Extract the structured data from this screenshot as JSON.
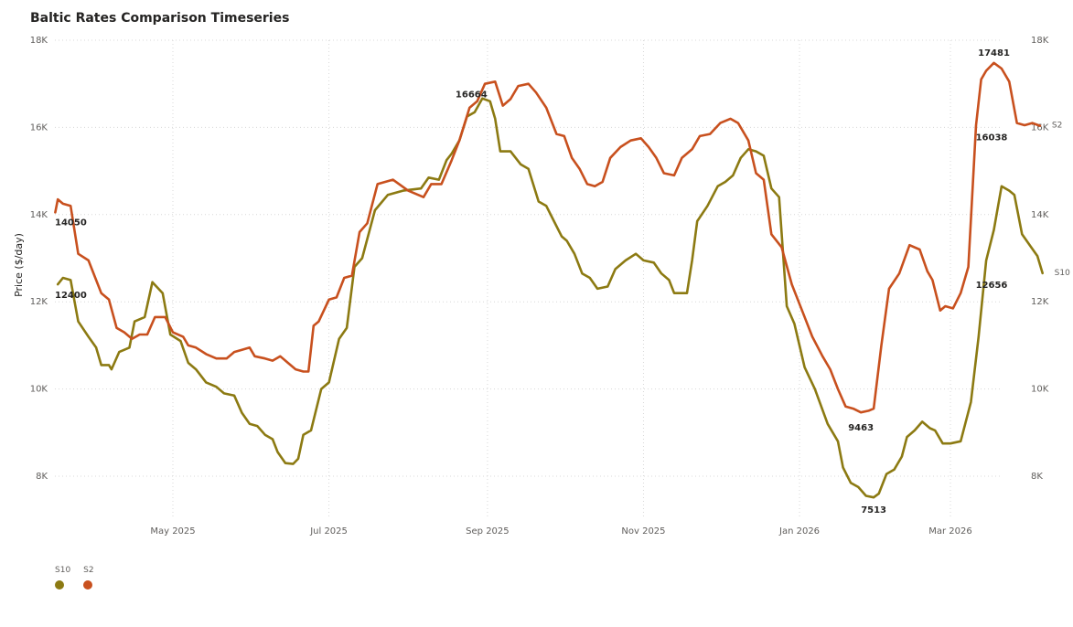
{
  "chart_data": {
    "type": "line",
    "title": "Baltic Rates Comparison Timeseries",
    "ylabel": "Price ($/day)",
    "xlabel": "",
    "ylim": [
      7000,
      18000
    ],
    "xlim": [
      "2025-03-15",
      "2026-03-22"
    ],
    "y_ticks": [
      {
        "value": 8000,
        "label": "8K"
      },
      {
        "value": 10000,
        "label": "10K"
      },
      {
        "value": 12000,
        "label": "12K"
      },
      {
        "value": 14000,
        "label": "14K"
      },
      {
        "value": 16000,
        "label": "16K"
      },
      {
        "value": 18000,
        "label": "18K"
      }
    ],
    "x_ticks": [
      {
        "date": "2025-05-01",
        "label": "May 2025"
      },
      {
        "date": "2025-07-01",
        "label": "Jul 2025"
      },
      {
        "date": "2025-09-01",
        "label": "Sep 2025"
      },
      {
        "date": "2025-11-01",
        "label": "Nov 2025"
      },
      {
        "date": "2026-01-01",
        "label": "Jan 2026"
      },
      {
        "date": "2026-03-01",
        "label": "Mar 2026"
      }
    ],
    "grid": true,
    "legend": "bottom-left",
    "series": [
      {
        "name": "S10",
        "color": "#8c7a12",
        "end_label": "S10",
        "points": [
          [
            "2025-03-17",
            12400
          ],
          [
            "2025-03-19",
            12550
          ],
          [
            "2025-03-22",
            12500
          ],
          [
            "2025-03-25",
            11550
          ],
          [
            "2025-03-29",
            11200
          ],
          [
            "2025-04-01",
            10950
          ],
          [
            "2025-04-03",
            10550
          ],
          [
            "2025-04-06",
            10550
          ],
          [
            "2025-04-07",
            10450
          ],
          [
            "2025-04-10",
            10850
          ],
          [
            "2025-04-14",
            10950
          ],
          [
            "2025-04-16",
            11550
          ],
          [
            "2025-04-20",
            11650
          ],
          [
            "2025-04-23",
            12450
          ],
          [
            "2025-04-27",
            12200
          ],
          [
            "2025-04-30",
            11250
          ],
          [
            "2025-05-04",
            11100
          ],
          [
            "2025-05-07",
            10600
          ],
          [
            "2025-05-10",
            10450
          ],
          [
            "2025-05-14",
            10150
          ],
          [
            "2025-05-18",
            10050
          ],
          [
            "2025-05-21",
            9900
          ],
          [
            "2025-05-25",
            9850
          ],
          [
            "2025-05-28",
            9450
          ],
          [
            "2025-05-31",
            9200
          ],
          [
            "2025-06-03",
            9150
          ],
          [
            "2025-06-06",
            8950
          ],
          [
            "2025-06-09",
            8850
          ],
          [
            "2025-06-11",
            8550
          ],
          [
            "2025-06-14",
            8300
          ],
          [
            "2025-06-17",
            8280
          ],
          [
            "2025-06-19",
            8400
          ],
          [
            "2025-06-21",
            8950
          ],
          [
            "2025-06-24",
            9050
          ],
          [
            "2025-06-28",
            10000
          ],
          [
            "2025-07-01",
            10150
          ],
          [
            "2025-07-05",
            11150
          ],
          [
            "2025-07-08",
            11400
          ],
          [
            "2025-07-11",
            12800
          ],
          [
            "2025-07-14",
            13000
          ],
          [
            "2025-07-19",
            14100
          ],
          [
            "2025-07-24",
            14450
          ],
          [
            "2025-07-30",
            14550
          ],
          [
            "2025-08-06",
            14600
          ],
          [
            "2025-08-09",
            14850
          ],
          [
            "2025-08-13",
            14800
          ],
          [
            "2025-08-16",
            15250
          ],
          [
            "2025-08-18",
            15400
          ],
          [
            "2025-08-21",
            15700
          ],
          [
            "2025-08-24",
            16250
          ],
          [
            "2025-08-27",
            16350
          ],
          [
            "2025-08-30",
            16664
          ],
          [
            "2025-09-02",
            16600
          ],
          [
            "2025-09-04",
            16200
          ],
          [
            "2025-09-06",
            15450
          ],
          [
            "2025-09-10",
            15450
          ],
          [
            "2025-09-14",
            15150
          ],
          [
            "2025-09-17",
            15050
          ],
          [
            "2025-09-21",
            14300
          ],
          [
            "2025-09-24",
            14200
          ],
          [
            "2025-09-27",
            13850
          ],
          [
            "2025-09-30",
            13500
          ],
          [
            "2025-10-02",
            13400
          ],
          [
            "2025-10-05",
            13100
          ],
          [
            "2025-10-08",
            12650
          ],
          [
            "2025-10-11",
            12550
          ],
          [
            "2025-10-14",
            12300
          ],
          [
            "2025-10-18",
            12350
          ],
          [
            "2025-10-21",
            12750
          ],
          [
            "2025-10-25",
            12950
          ],
          [
            "2025-10-29",
            13100
          ],
          [
            "2025-11-01",
            12950
          ],
          [
            "2025-11-05",
            12900
          ],
          [
            "2025-11-08",
            12650
          ],
          [
            "2025-11-11",
            12500
          ],
          [
            "2025-11-13",
            12200
          ],
          [
            "2025-11-16",
            12200
          ],
          [
            "2025-11-18",
            12200
          ],
          [
            "2025-11-20",
            12950
          ],
          [
            "2025-11-22",
            13850
          ],
          [
            "2025-11-26",
            14200
          ],
          [
            "2025-11-30",
            14650
          ],
          [
            "2025-12-03",
            14750
          ],
          [
            "2025-12-06",
            14900
          ],
          [
            "2025-12-09",
            15300
          ],
          [
            "2025-12-12",
            15500
          ],
          [
            "2025-12-15",
            15450
          ],
          [
            "2025-12-18",
            15350
          ],
          [
            "2025-12-21",
            14600
          ],
          [
            "2025-12-24",
            14400
          ],
          [
            "2025-12-27",
            11900
          ],
          [
            "2025-12-30",
            11500
          ],
          [
            "2026-01-03",
            10500
          ],
          [
            "2026-01-07",
            10000
          ],
          [
            "2026-01-12",
            9200
          ],
          [
            "2026-01-16",
            8800
          ],
          [
            "2026-01-18",
            8200
          ],
          [
            "2026-01-21",
            7850
          ],
          [
            "2026-01-24",
            7750
          ],
          [
            "2026-01-27",
            7550
          ],
          [
            "2026-01-30",
            7513
          ],
          [
            "2026-02-01",
            7600
          ],
          [
            "2026-02-04",
            8050
          ],
          [
            "2026-02-07",
            8150
          ],
          [
            "2026-02-10",
            8450
          ],
          [
            "2026-02-12",
            8900
          ],
          [
            "2026-02-15",
            9050
          ],
          [
            "2026-02-18",
            9250
          ],
          [
            "2026-02-21",
            9100
          ],
          [
            "2026-02-23",
            9050
          ],
          [
            "2026-02-26",
            8750
          ],
          [
            "2026-03-01",
            8750
          ],
          [
            "2026-03-05",
            8800
          ],
          [
            "2026-03-09",
            9700
          ],
          [
            "2026-03-12",
            11200
          ],
          [
            "2026-03-15",
            12950
          ],
          [
            "2026-03-18",
            13650
          ],
          [
            "2026-03-21",
            14650
          ],
          [
            "2026-03-24",
            14550
          ],
          [
            "2026-03-26",
            14450
          ],
          [
            "2026-03-29",
            13550
          ],
          [
            "2026-04-01",
            13300
          ],
          [
            "2026-04-04",
            13050
          ],
          [
            "2026-04-06",
            12656
          ]
        ],
        "labels": [
          {
            "date": "2025-03-17",
            "value": 12400,
            "text": "12400"
          },
          {
            "date": "2025-08-30",
            "value": 16664,
            "text": "16664"
          },
          {
            "date": "2026-01-30",
            "value": 7513,
            "text": "7513"
          },
          {
            "date": "2026-04-06",
            "value": 12656,
            "text": "12656"
          }
        ]
      },
      {
        "name": "S2",
        "color": "#c8501e",
        "end_label": "S2",
        "points": [
          [
            "2025-03-16",
            14050
          ],
          [
            "2025-03-17",
            14350
          ],
          [
            "2025-03-19",
            14250
          ],
          [
            "2025-03-22",
            14200
          ],
          [
            "2025-03-25",
            13100
          ],
          [
            "2025-03-29",
            12950
          ],
          [
            "2025-04-01",
            12500
          ],
          [
            "2025-04-03",
            12200
          ],
          [
            "2025-04-06",
            12050
          ],
          [
            "2025-04-09",
            11400
          ],
          [
            "2025-04-12",
            11300
          ],
          [
            "2025-04-15",
            11150
          ],
          [
            "2025-04-18",
            11250
          ],
          [
            "2025-04-21",
            11250
          ],
          [
            "2025-04-24",
            11650
          ],
          [
            "2025-04-28",
            11650
          ],
          [
            "2025-05-01",
            11300
          ],
          [
            "2025-05-05",
            11200
          ],
          [
            "2025-05-07",
            11000
          ],
          [
            "2025-05-10",
            10950
          ],
          [
            "2025-05-14",
            10800
          ],
          [
            "2025-05-18",
            10700
          ],
          [
            "2025-05-22",
            10700
          ],
          [
            "2025-05-25",
            10850
          ],
          [
            "2025-05-28",
            10900
          ],
          [
            "2025-05-31",
            10950
          ],
          [
            "2025-06-02",
            10750
          ],
          [
            "2025-06-06",
            10700
          ],
          [
            "2025-06-09",
            10650
          ],
          [
            "2025-06-12",
            10750
          ],
          [
            "2025-06-15",
            10600
          ],
          [
            "2025-06-18",
            10450
          ],
          [
            "2025-06-21",
            10400
          ],
          [
            "2025-06-23",
            10400
          ],
          [
            "2025-06-25",
            11450
          ],
          [
            "2025-06-27",
            11550
          ],
          [
            "2025-07-01",
            12050
          ],
          [
            "2025-07-04",
            12100
          ],
          [
            "2025-07-07",
            12550
          ],
          [
            "2025-07-10",
            12600
          ],
          [
            "2025-07-13",
            13600
          ],
          [
            "2025-07-16",
            13800
          ],
          [
            "2025-07-20",
            14700
          ],
          [
            "2025-07-26",
            14800
          ],
          [
            "2025-08-01",
            14550
          ],
          [
            "2025-08-05",
            14450
          ],
          [
            "2025-08-07",
            14400
          ],
          [
            "2025-08-10",
            14700
          ],
          [
            "2025-08-14",
            14700
          ],
          [
            "2025-08-18",
            15250
          ],
          [
            "2025-08-21",
            15700
          ],
          [
            "2025-08-25",
            16450
          ],
          [
            "2025-08-28",
            16600
          ],
          [
            "2025-08-31",
            17000
          ],
          [
            "2025-09-04",
            17050
          ],
          [
            "2025-09-07",
            16500
          ],
          [
            "2025-09-10",
            16650
          ],
          [
            "2025-09-13",
            16950
          ],
          [
            "2025-09-17",
            17000
          ],
          [
            "2025-09-20",
            16800
          ],
          [
            "2025-09-24",
            16450
          ],
          [
            "2025-09-28",
            15850
          ],
          [
            "2025-10-01",
            15800
          ],
          [
            "2025-10-04",
            15300
          ],
          [
            "2025-10-07",
            15050
          ],
          [
            "2025-10-10",
            14700
          ],
          [
            "2025-10-13",
            14650
          ],
          [
            "2025-10-16",
            14750
          ],
          [
            "2025-10-19",
            15300
          ],
          [
            "2025-10-23",
            15550
          ],
          [
            "2025-10-27",
            15700
          ],
          [
            "2025-10-31",
            15750
          ],
          [
            "2025-11-03",
            15550
          ],
          [
            "2025-11-06",
            15300
          ],
          [
            "2025-11-09",
            14950
          ],
          [
            "2025-11-13",
            14900
          ],
          [
            "2025-11-16",
            15300
          ],
          [
            "2025-11-20",
            15500
          ],
          [
            "2025-11-23",
            15800
          ],
          [
            "2025-11-27",
            15850
          ],
          [
            "2025-12-01",
            16100
          ],
          [
            "2025-12-05",
            16200
          ],
          [
            "2025-12-08",
            16100
          ],
          [
            "2025-12-12",
            15700
          ],
          [
            "2025-12-15",
            14950
          ],
          [
            "2025-12-18",
            14800
          ],
          [
            "2025-12-21",
            13550
          ],
          [
            "2025-12-25",
            13250
          ],
          [
            "2025-12-29",
            12400
          ],
          [
            "2026-01-02",
            11800
          ],
          [
            "2026-01-06",
            11200
          ],
          [
            "2026-01-10",
            10750
          ],
          [
            "2026-01-13",
            10450
          ],
          [
            "2026-01-16",
            10000
          ],
          [
            "2026-01-19",
            9600
          ],
          [
            "2026-01-22",
            9550
          ],
          [
            "2026-01-25",
            9463
          ],
          [
            "2026-01-28",
            9500
          ],
          [
            "2026-01-30",
            9550
          ],
          [
            "2026-02-02",
            11000
          ],
          [
            "2026-02-05",
            12300
          ],
          [
            "2026-02-09",
            12650
          ],
          [
            "2026-02-13",
            13300
          ],
          [
            "2026-02-17",
            13200
          ],
          [
            "2026-02-20",
            12700
          ],
          [
            "2026-02-22",
            12500
          ],
          [
            "2026-02-25",
            11800
          ],
          [
            "2026-02-27",
            11900
          ],
          [
            "2026-03-02",
            11850
          ],
          [
            "2026-03-05",
            12200
          ],
          [
            "2026-03-08",
            12800
          ],
          [
            "2026-03-11",
            16050
          ],
          [
            "2026-03-13",
            17100
          ],
          [
            "2026-03-15",
            17300
          ],
          [
            "2026-03-18",
            17481
          ],
          [
            "2026-03-21",
            17350
          ],
          [
            "2026-03-24",
            17050
          ],
          [
            "2026-03-27",
            16100
          ],
          [
            "2026-03-30",
            16050
          ],
          [
            "2026-04-02",
            16100
          ],
          [
            "2026-04-05",
            16038
          ]
        ],
        "labels": [
          {
            "date": "2025-03-16",
            "value": 14050,
            "text": "14050"
          },
          {
            "date": "2026-01-25",
            "value": 9463,
            "text": "9463"
          },
          {
            "date": "2026-03-18",
            "value": 17481,
            "text": "17481"
          },
          {
            "date": "2026-04-05",
            "value": 16038,
            "text": "16038"
          }
        ]
      }
    ]
  }
}
